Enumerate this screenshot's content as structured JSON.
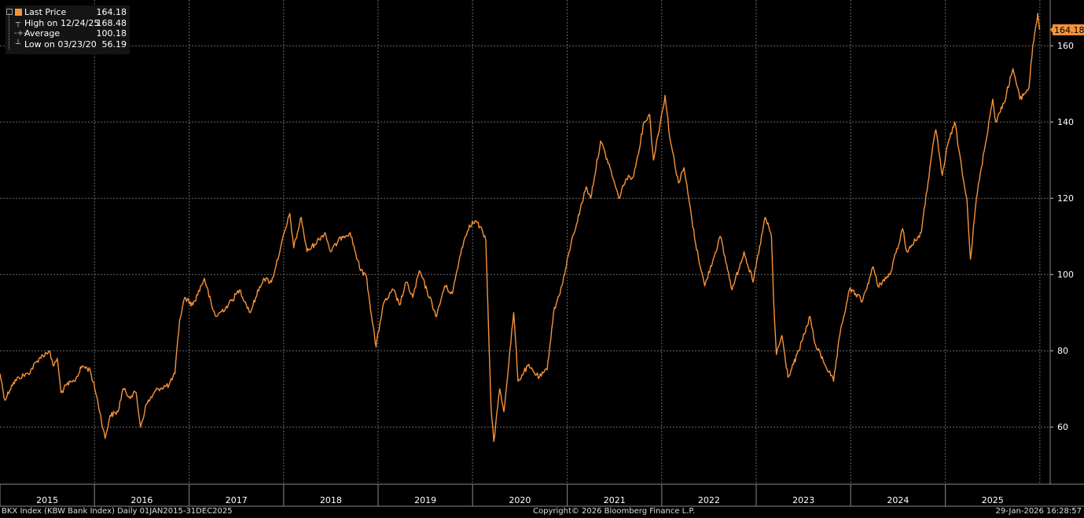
{
  "legend": {
    "items": [
      {
        "label": "Last Price",
        "value": "164.18",
        "icon": "square-swatch"
      },
      {
        "label": "High on 12/24/25",
        "value": "168.48",
        "icon": "high-marker"
      },
      {
        "label": "Average",
        "value": "100.18",
        "icon": "average-marker"
      },
      {
        "label": "Low on 03/23/20",
        "value": "56.19",
        "icon": "low-marker"
      }
    ]
  },
  "last_price_tag": "164.18",
  "footer": {
    "left": "BKX Index (KBW Bank Index) Daily 01JAN2015-31DEC2025",
    "center": "Copyright© 2026 Bloomberg Finance L.P.",
    "right": "29-Jan-2026 16:28:57"
  },
  "colors": {
    "line": "#f7923a",
    "background": "#000000",
    "grid": "#6a6a6a",
    "text": "#ffffff"
  },
  "chart_data": {
    "type": "line",
    "series": [
      {
        "name": "Last Price",
        "values": [
          {
            "x": "2015-01-01",
            "y": 74
          },
          {
            "x": "2015-01-20",
            "y": 67
          },
          {
            "x": "2015-02-15",
            "y": 71
          },
          {
            "x": "2015-03-15",
            "y": 73
          },
          {
            "x": "2015-04-20",
            "y": 74
          },
          {
            "x": "2015-06-01",
            "y": 78
          },
          {
            "x": "2015-07-10",
            "y": 80
          },
          {
            "x": "2015-07-25",
            "y": 76
          },
          {
            "x": "2015-08-10",
            "y": 78
          },
          {
            "x": "2015-08-25",
            "y": 69
          },
          {
            "x": "2015-09-15",
            "y": 71
          },
          {
            "x": "2015-10-15",
            "y": 72
          },
          {
            "x": "2015-11-15",
            "y": 76
          },
          {
            "x": "2015-12-15",
            "y": 75
          },
          {
            "x": "2016-01-10",
            "y": 68
          },
          {
            "x": "2016-02-11",
            "y": 57
          },
          {
            "x": "2016-03-01",
            "y": 63
          },
          {
            "x": "2016-04-01",
            "y": 64
          },
          {
            "x": "2016-04-20",
            "y": 70
          },
          {
            "x": "2016-05-15",
            "y": 68
          },
          {
            "x": "2016-06-10",
            "y": 69
          },
          {
            "x": "2016-06-27",
            "y": 60
          },
          {
            "x": "2016-07-20",
            "y": 66
          },
          {
            "x": "2016-09-01",
            "y": 70
          },
          {
            "x": "2016-10-15",
            "y": 71
          },
          {
            "x": "2016-11-07",
            "y": 74
          },
          {
            "x": "2016-11-25",
            "y": 88
          },
          {
            "x": "2016-12-15",
            "y": 94
          },
          {
            "x": "2017-01-15",
            "y": 92
          },
          {
            "x": "2017-03-01",
            "y": 99
          },
          {
            "x": "2017-04-01",
            "y": 91
          },
          {
            "x": "2017-04-15",
            "y": 89
          },
          {
            "x": "2017-06-01",
            "y": 92
          },
          {
            "x": "2017-07-15",
            "y": 96
          },
          {
            "x": "2017-08-25",
            "y": 90
          },
          {
            "x": "2017-09-15",
            "y": 94
          },
          {
            "x": "2017-10-15",
            "y": 99
          },
          {
            "x": "2017-11-15",
            "y": 98
          },
          {
            "x": "2017-12-20",
            "y": 107
          },
          {
            "x": "2018-01-25",
            "y": 116
          },
          {
            "x": "2018-02-09",
            "y": 107
          },
          {
            "x": "2018-03-10",
            "y": 115
          },
          {
            "x": "2018-04-01",
            "y": 106
          },
          {
            "x": "2018-05-01",
            "y": 108
          },
          {
            "x": "2018-06-10",
            "y": 111
          },
          {
            "x": "2018-07-01",
            "y": 106
          },
          {
            "x": "2018-08-15",
            "y": 110
          },
          {
            "x": "2018-09-15",
            "y": 111
          },
          {
            "x": "2018-10-25",
            "y": 101
          },
          {
            "x": "2018-11-15",
            "y": 100
          },
          {
            "x": "2018-12-24",
            "y": 81
          },
          {
            "x": "2019-01-20",
            "y": 92
          },
          {
            "x": "2019-03-01",
            "y": 96
          },
          {
            "x": "2019-03-25",
            "y": 92
          },
          {
            "x": "2019-04-20",
            "y": 98
          },
          {
            "x": "2019-05-15",
            "y": 94
          },
          {
            "x": "2019-06-10",
            "y": 101
          },
          {
            "x": "2019-08-15",
            "y": 89
          },
          {
            "x": "2019-09-15",
            "y": 97
          },
          {
            "x": "2019-10-15",
            "y": 95
          },
          {
            "x": "2019-11-20",
            "y": 107
          },
          {
            "x": "2019-12-20",
            "y": 113
          },
          {
            "x": "2020-01-15",
            "y": 114
          },
          {
            "x": "2020-02-10",
            "y": 111
          },
          {
            "x": "2020-02-21",
            "y": 109
          },
          {
            "x": "2020-03-01",
            "y": 90
          },
          {
            "x": "2020-03-12",
            "y": 66
          },
          {
            "x": "2020-03-23",
            "y": 56.19
          },
          {
            "x": "2020-04-15",
            "y": 70
          },
          {
            "x": "2020-05-01",
            "y": 64
          },
          {
            "x": "2020-06-08",
            "y": 90
          },
          {
            "x": "2020-06-25",
            "y": 72
          },
          {
            "x": "2020-08-01",
            "y": 76
          },
          {
            "x": "2020-09-15",
            "y": 73
          },
          {
            "x": "2020-10-15",
            "y": 75
          },
          {
            "x": "2020-11-09",
            "y": 90
          },
          {
            "x": "2020-12-15",
            "y": 98
          },
          {
            "x": "2021-01-15",
            "y": 108
          },
          {
            "x": "2021-02-20",
            "y": 117
          },
          {
            "x": "2021-03-15",
            "y": 123
          },
          {
            "x": "2021-04-01",
            "y": 120
          },
          {
            "x": "2021-05-10",
            "y": 135
          },
          {
            "x": "2021-06-15",
            "y": 128
          },
          {
            "x": "2021-07-19",
            "y": 120
          },
          {
            "x": "2021-08-15",
            "y": 125
          },
          {
            "x": "2021-09-15",
            "y": 126
          },
          {
            "x": "2021-10-25",
            "y": 140
          },
          {
            "x": "2021-11-15",
            "y": 142
          },
          {
            "x": "2021-11-30",
            "y": 130
          },
          {
            "x": "2022-01-14",
            "y": 147
          },
          {
            "x": "2022-02-01",
            "y": 136
          },
          {
            "x": "2022-03-07",
            "y": 124
          },
          {
            "x": "2022-03-28",
            "y": 128
          },
          {
            "x": "2022-05-12",
            "y": 108
          },
          {
            "x": "2022-06-16",
            "y": 97
          },
          {
            "x": "2022-08-15",
            "y": 110
          },
          {
            "x": "2022-09-30",
            "y": 96
          },
          {
            "x": "2022-11-15",
            "y": 106
          },
          {
            "x": "2022-12-20",
            "y": 98
          },
          {
            "x": "2023-02-05",
            "y": 115
          },
          {
            "x": "2023-03-01",
            "y": 110
          },
          {
            "x": "2023-03-10",
            "y": 92
          },
          {
            "x": "2023-03-20",
            "y": 79
          },
          {
            "x": "2023-04-10",
            "y": 84
          },
          {
            "x": "2023-05-04",
            "y": 73
          },
          {
            "x": "2023-06-15",
            "y": 80
          },
          {
            "x": "2023-07-28",
            "y": 89
          },
          {
            "x": "2023-08-15",
            "y": 82
          },
          {
            "x": "2023-10-27",
            "y": 72
          },
          {
            "x": "2023-11-20",
            "y": 84
          },
          {
            "x": "2023-12-27",
            "y": 96
          },
          {
            "x": "2024-01-20",
            "y": 95
          },
          {
            "x": "2024-02-15",
            "y": 93
          },
          {
            "x": "2024-03-28",
            "y": 102
          },
          {
            "x": "2024-04-15",
            "y": 97
          },
          {
            "x": "2024-06-01",
            "y": 100
          },
          {
            "x": "2024-07-20",
            "y": 112
          },
          {
            "x": "2024-08-05",
            "y": 106
          },
          {
            "x": "2024-09-30",
            "y": 111
          },
          {
            "x": "2024-11-06",
            "y": 130
          },
          {
            "x": "2024-11-25",
            "y": 138
          },
          {
            "x": "2024-12-20",
            "y": 126
          },
          {
            "x": "2025-01-10",
            "y": 134
          },
          {
            "x": "2025-02-06",
            "y": 140
          },
          {
            "x": "2025-03-05",
            "y": 128
          },
          {
            "x": "2025-03-25",
            "y": 120
          },
          {
            "x": "2025-04-08",
            "y": 104
          },
          {
            "x": "2025-05-01",
            "y": 120
          },
          {
            "x": "2025-05-20",
            "y": 128
          },
          {
            "x": "2025-07-03",
            "y": 146
          },
          {
            "x": "2025-07-15",
            "y": 140
          },
          {
            "x": "2025-08-15",
            "y": 145
          },
          {
            "x": "2025-09-19",
            "y": 154
          },
          {
            "x": "2025-10-16",
            "y": 146
          },
          {
            "x": "2025-11-20",
            "y": 149
          },
          {
            "x": "2025-12-05",
            "y": 160
          },
          {
            "x": "2025-12-24",
            "y": 168.48
          },
          {
            "x": "2025-12-31",
            "y": 164.18
          }
        ]
      }
    ],
    "ylim": [
      45,
      172
    ],
    "yticks": [
      60,
      80,
      100,
      120,
      140,
      160
    ],
    "xlim": [
      "2015-01-01",
      "2026-02-10"
    ],
    "x_tick_labels": [
      "2015",
      "2016",
      "2017",
      "2018",
      "2019",
      "2020",
      "2021",
      "2022",
      "2023",
      "2024",
      "2025"
    ],
    "grid": true,
    "y_axis": "right",
    "legend_position": "top-left",
    "annotations": [
      {
        "label": "High on 12/24/25",
        "x": "2025-12-24",
        "y": 168.48
      },
      {
        "label": "Low on 03/23/20",
        "x": "2020-03-23",
        "y": 56.19
      },
      {
        "label": "Average",
        "y": 100.18
      }
    ]
  }
}
